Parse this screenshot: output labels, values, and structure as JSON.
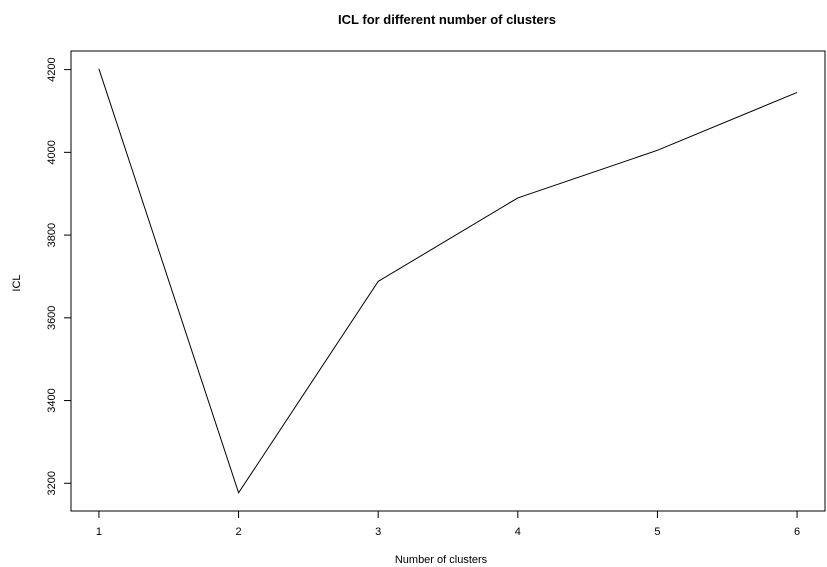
{
  "chart_data": {
    "type": "line",
    "title": "ICL for different number of clusters",
    "xlabel": "Number of clusters",
    "ylabel": "ICL",
    "x": [
      1,
      2,
      3,
      4,
      5,
      6
    ],
    "series": [
      {
        "values": [
          4202,
          3177,
          3688,
          3890,
          4005,
          4145
        ]
      }
    ],
    "xlim": [
      0.8,
      6.2
    ],
    "ylim": [
      3133,
      4245
    ],
    "x_ticks": [
      1,
      2,
      3,
      4,
      5,
      6
    ],
    "x_tick_labels": [
      "1",
      "2",
      "3",
      "4",
      "5",
      "6"
    ],
    "y_ticks": [
      3200,
      3400,
      3600,
      3800,
      4000,
      4200
    ],
    "y_tick_labels": [
      "3200",
      "3400",
      "3600",
      "3800",
      "4000",
      "4200"
    ],
    "grid": false,
    "line_color": "#000000"
  }
}
